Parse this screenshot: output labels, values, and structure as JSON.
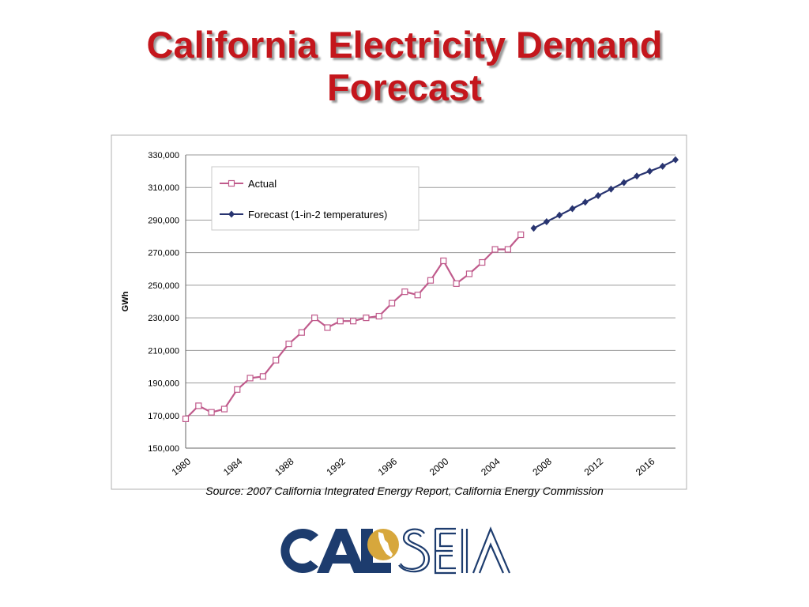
{
  "slide": {
    "title_line1": "California Electricity Demand",
    "title_line2": "Forecast",
    "source": "Source:  2007 California Integrated Energy Report, California Energy Commission",
    "logo": {
      "left_text": "CAL",
      "right_text": "SEIA",
      "icon": "sun-california-icon",
      "colors": {
        "navy": "#1d3c6e",
        "gold": "#d7a73c"
      }
    }
  },
  "chart_data": {
    "type": "line",
    "title": "",
    "xlabel": "",
    "ylabel": "GWh",
    "xlim": [
      1980,
      2018
    ],
    "ylim": [
      150000,
      330000
    ],
    "yticks": [
      150000,
      170000,
      190000,
      210000,
      230000,
      250000,
      270000,
      290000,
      310000,
      330000
    ],
    "ytick_labels": [
      "150,000",
      "170,000",
      "190,000",
      "210,000",
      "230,000",
      "250,000",
      "270,000",
      "290,000",
      "310,000",
      "330,000"
    ],
    "xticks": [
      1980,
      1984,
      1988,
      1992,
      1996,
      2000,
      2004,
      2008,
      2012,
      2016
    ],
    "xtick_labels": [
      "1980",
      "1984",
      "1988",
      "1992",
      "1996",
      "2000",
      "2004",
      "2008",
      "2012",
      "2016"
    ],
    "grid": "horizontal",
    "legend_position": "top-left",
    "series": [
      {
        "name": "Actual",
        "color": "#c05b8c",
        "marker": "open-square",
        "x": [
          1980,
          1981,
          1982,
          1983,
          1984,
          1985,
          1986,
          1987,
          1988,
          1989,
          1990,
          1991,
          1992,
          1993,
          1994,
          1995,
          1996,
          1997,
          1998,
          1999,
          2000,
          2001,
          2002,
          2003,
          2004,
          2005,
          2006
        ],
        "values": [
          168000,
          176000,
          172000,
          174000,
          186000,
          193000,
          194000,
          204000,
          214000,
          221000,
          230000,
          224000,
          228000,
          228000,
          230000,
          231000,
          239000,
          246000,
          244000,
          253000,
          265000,
          251000,
          257000,
          264000,
          272000,
          272000,
          281000
        ]
      },
      {
        "name": "Forecast (1-in-2 temperatures)",
        "color": "#283470",
        "marker": "filled-diamond",
        "x": [
          2007,
          2008,
          2009,
          2010,
          2011,
          2012,
          2013,
          2014,
          2015,
          2016,
          2017,
          2018
        ],
        "values": [
          285000,
          289000,
          293000,
          297000,
          301000,
          305000,
          309000,
          313000,
          317000,
          320000,
          323000,
          327000
        ]
      }
    ]
  }
}
